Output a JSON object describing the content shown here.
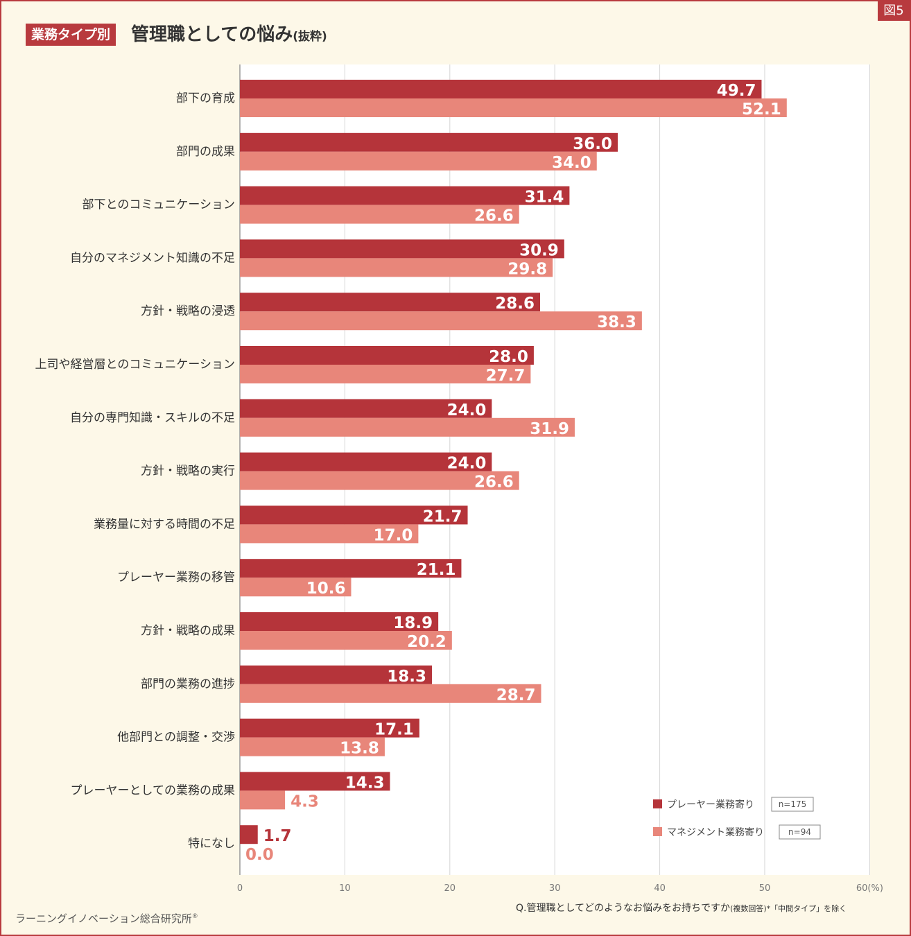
{
  "figure_tag": "図5",
  "title": {
    "badge": "業務タイプ別",
    "main": "管理職としての悩み",
    "sub": "(抜粋)"
  },
  "colors": {
    "player": "#b5343a",
    "management": "#e8867a",
    "accent": "#b83a3e",
    "background": "#fdf8e8"
  },
  "chart_data": {
    "type": "bar",
    "orientation": "horizontal",
    "title": "管理職としての悩み(抜粋)",
    "categories": [
      "部下の育成",
      "部門の成果",
      "部下とのコミュニケーション",
      "自分のマネジメント知識の不足",
      "方針・戦略の浸透",
      "上司や経営層とのコミュニケーション",
      "自分の専門知識・スキルの不足",
      "方針・戦略の実行",
      "業務量に対する時間の不足",
      "プレーヤー業務の移管",
      "方針・戦略の成果",
      "部門の業務の進捗",
      "他部門との調整・交渉",
      "プレーヤーとしての業務の成果",
      "特になし"
    ],
    "series": [
      {
        "name": "プレーヤー業務寄り",
        "n": "n=175",
        "color": "#b5343a",
        "values": [
          49.7,
          36.0,
          31.4,
          30.9,
          28.6,
          28.0,
          24.0,
          24.0,
          21.7,
          21.1,
          18.9,
          18.3,
          17.1,
          14.3,
          1.7
        ]
      },
      {
        "name": "マネジメント業務寄り",
        "n": "n=94",
        "color": "#e8867a",
        "values": [
          52.1,
          34.0,
          26.6,
          29.8,
          38.3,
          27.7,
          31.9,
          26.6,
          17.0,
          10.6,
          20.2,
          28.7,
          13.8,
          4.3,
          0.0
        ]
      }
    ],
    "xlim": [
      0,
      60
    ],
    "xticks": [
      "0",
      "10",
      "20",
      "30",
      "40",
      "50",
      "60(%)"
    ],
    "grid": true,
    "legend_position": "bottom-right"
  },
  "footer": {
    "question": "Q.管理職としてどのようなお悩みをお持ちですか",
    "question_note": "(複数回答)*「中間タイプ」を除く",
    "source": "ラーニングイノベーション総合研究所",
    "registered_mark": "®"
  }
}
